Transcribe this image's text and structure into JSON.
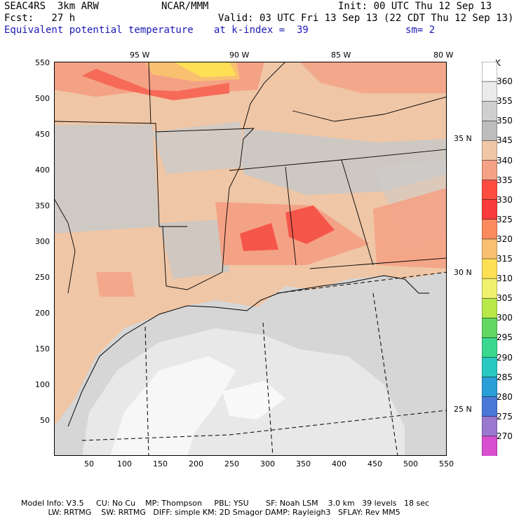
{
  "header": {
    "model_name": "SEAC4RS  3km ARW",
    "org": "NCAR/MMM",
    "init": "Init: 00 UTC Thu 12 Sep 13",
    "fcst": "Fcst:   27 h",
    "valid": "Valid: 03 UTC Fri 13 Sep 13 (22 CDT Thu 12 Sep 13)",
    "field": "Equivalent potential temperature",
    "level": "at k-index =  39",
    "smooth": "sm= 2"
  },
  "axes": {
    "x_ticks": [
      "50",
      "100",
      "150",
      "200",
      "250",
      "300",
      "350",
      "400",
      "450",
      "500",
      "550"
    ],
    "y_ticks": [
      "550",
      "500",
      "450",
      "400",
      "350",
      "300",
      "250",
      "200",
      "150",
      "100",
      "50"
    ],
    "lon_labels": [
      "95 W",
      "90 W",
      "85 W",
      "80 W"
    ],
    "lat_labels": [
      "35 N",
      "30 N",
      "25 N"
    ]
  },
  "legend": {
    "unit": "K",
    "levels": [
      "360",
      "355",
      "350",
      "345",
      "340",
      "335",
      "330",
      "325",
      "320",
      "315",
      "310",
      "305",
      "300",
      "295",
      "290",
      "285",
      "280",
      "275",
      "270"
    ],
    "colors": [
      "#ffffff",
      "#ebebeb",
      "#cfcfcf",
      "#bdbdbd",
      "#f0c8a8",
      "#f4a286",
      "#ff4c40",
      "#f83a3a",
      "#fb8a5e",
      "#f8c070",
      "#ffe055",
      "#f0f070",
      "#b8e84a",
      "#62d862",
      "#3ad88e",
      "#2ac8c0",
      "#2a9ed6",
      "#4a78d8",
      "#9a78d0",
      "#d850d0"
    ]
  },
  "footer": {
    "line1": "Model Info: V3.5     CU: No Cu    MP: Thompson     PBL: YSU       SF: Noah LSM    3.0 km   39 levels   18 sec",
    "line2": "           LW: RRTMG    SW: RRTMG   DIFF: simple KM: 2D Smagor DAMP: Rayleigh3   SFLAY: Rev MM5"
  }
}
